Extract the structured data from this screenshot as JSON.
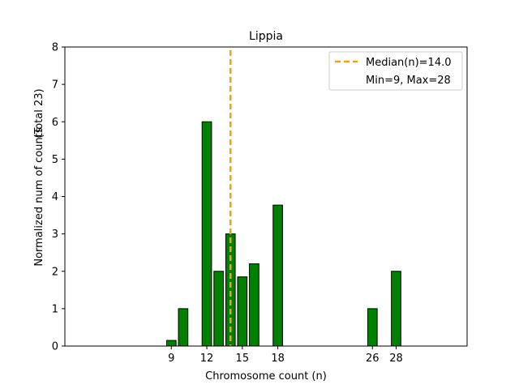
{
  "chart_data": {
    "type": "bar",
    "title": "Lippia",
    "xlabel": "Chromosome count (n)",
    "ylabel": "Normalized num of counts",
    "ylabel_note": "(Total 23)",
    "xlim": [
      0,
      34
    ],
    "ylim": [
      0,
      8
    ],
    "xticks": [
      9,
      12,
      15,
      18,
      26,
      28
    ],
    "yticks": [
      0,
      1,
      2,
      3,
      4,
      5,
      6,
      7,
      8
    ],
    "bar_color": "#008000",
    "bar_edge_color": "#000000",
    "bars": [
      {
        "x": 9,
        "value": 0.15
      },
      {
        "x": 10,
        "value": 1
      },
      {
        "x": 12,
        "value": 6
      },
      {
        "x": 13,
        "value": 2
      },
      {
        "x": 14,
        "value": 3
      },
      {
        "x": 15,
        "value": 1.85
      },
      {
        "x": 16,
        "value": 2.2
      },
      {
        "x": 18,
        "value": 3.77
      },
      {
        "x": 26,
        "value": 1
      },
      {
        "x": 28,
        "value": 2
      }
    ],
    "median_line": {
      "x": 14.0,
      "color": "#f0a30a",
      "style": "dashed"
    },
    "legend": {
      "position": "top-right",
      "entries": [
        "Median(n)=14.0",
        "Min=9, Max=28"
      ]
    },
    "grid": false
  }
}
